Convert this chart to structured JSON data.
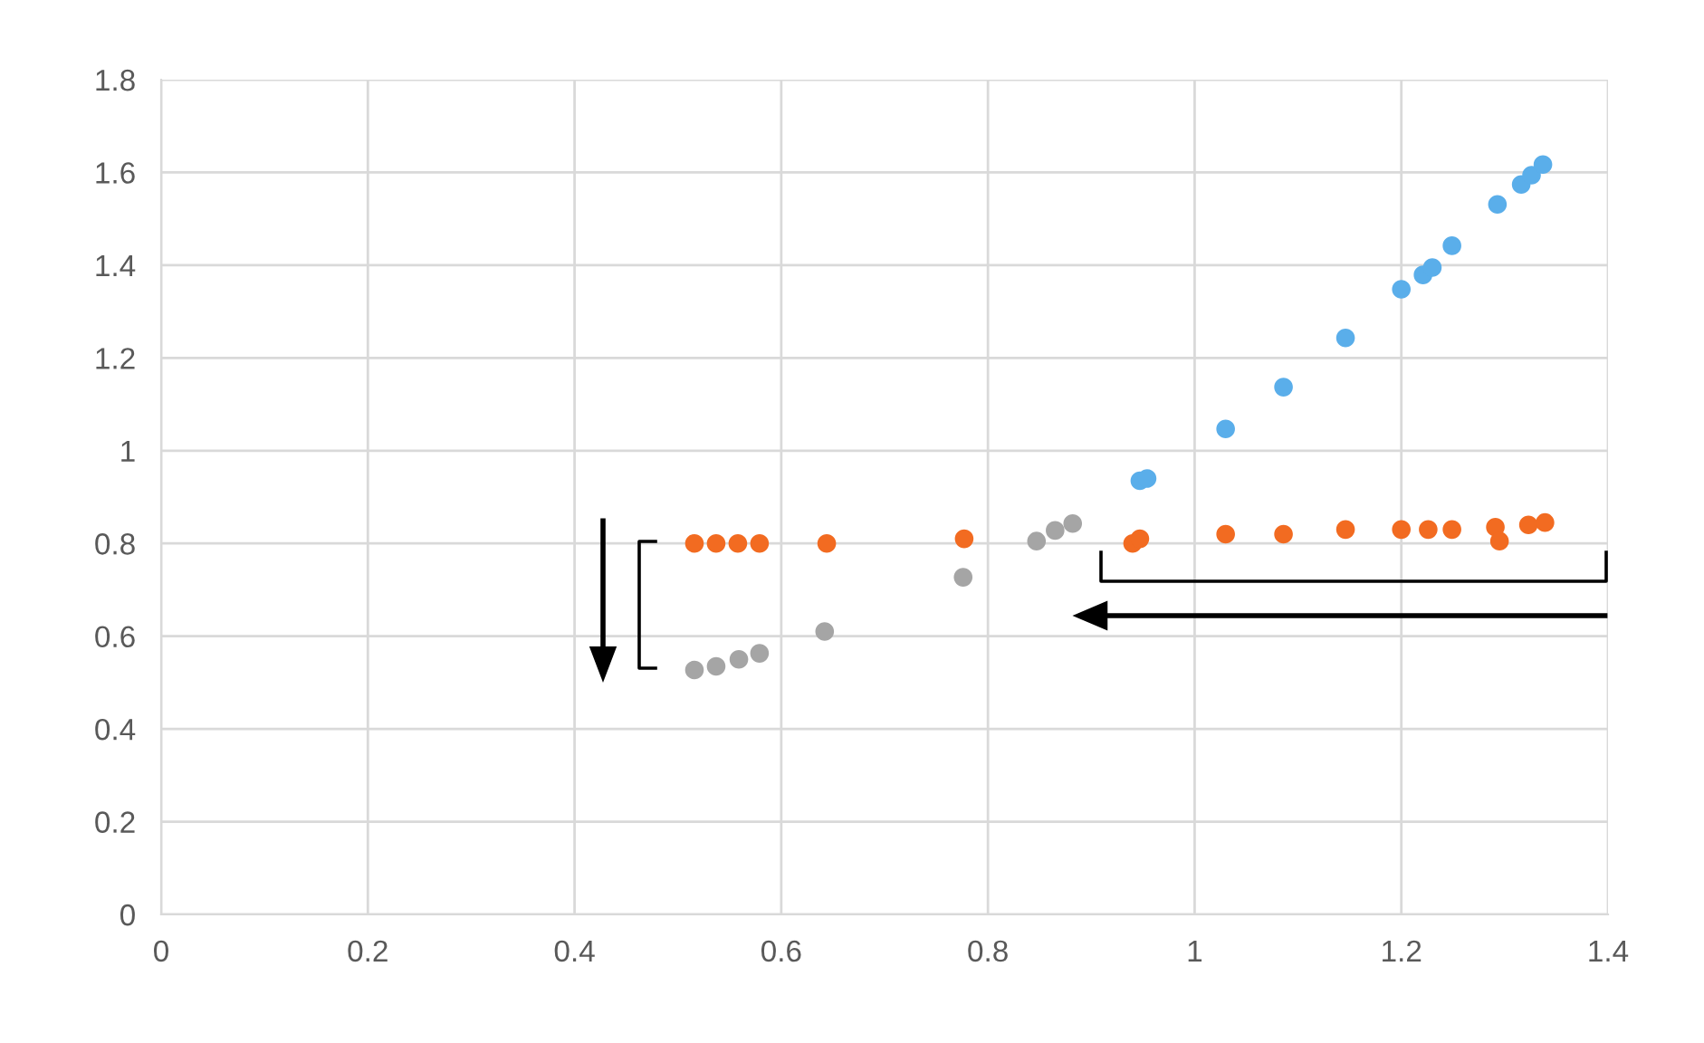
{
  "chart_data": {
    "type": "scatter",
    "xlim": [
      0,
      1.4
    ],
    "ylim": [
      0,
      1.8
    ],
    "xticks": [
      0,
      0.2,
      0.4,
      0.6,
      0.8,
      1,
      1.2,
      1.4
    ],
    "yticks": [
      0,
      0.2,
      0.4,
      0.6,
      0.8,
      1,
      1.2,
      1.4,
      1.6,
      1.8
    ],
    "grid": true,
    "marker": "circle",
    "series": [
      {
        "color": "#5aaeea",
        "x": [
          0.947,
          0.954,
          1.03,
          1.086,
          1.146,
          1.2,
          1.221,
          1.23,
          1.249,
          1.293,
          1.316,
          1.326,
          1.337
        ],
        "values": [
          0.935,
          0.94,
          1.047,
          1.137,
          1.243,
          1.348,
          1.379,
          1.395,
          1.442,
          1.531,
          1.574,
          1.594,
          1.617
        ]
      },
      {
        "color": "#f26b21",
        "x": [
          0.516,
          0.537,
          0.558,
          0.579,
          0.644,
          0.777,
          0.94,
          0.947,
          1.03,
          1.086,
          1.146,
          1.2,
          1.226,
          1.249,
          1.291,
          1.295,
          1.323,
          1.339
        ],
        "values": [
          0.8,
          0.8,
          0.8,
          0.8,
          0.8,
          0.81,
          0.8,
          0.81,
          0.82,
          0.82,
          0.83,
          0.83,
          0.83,
          0.83,
          0.835,
          0.805,
          0.84,
          0.845
        ]
      },
      {
        "color": "#a5a5a5",
        "x": [
          0.516,
          0.537,
          0.559,
          0.579,
          0.642,
          0.776,
          0.847,
          0.865,
          0.882
        ],
        "values": [
          0.527,
          0.535,
          0.55,
          0.563,
          0.61,
          0.727,
          0.805,
          0.828,
          0.843
        ]
      }
    ]
  }
}
